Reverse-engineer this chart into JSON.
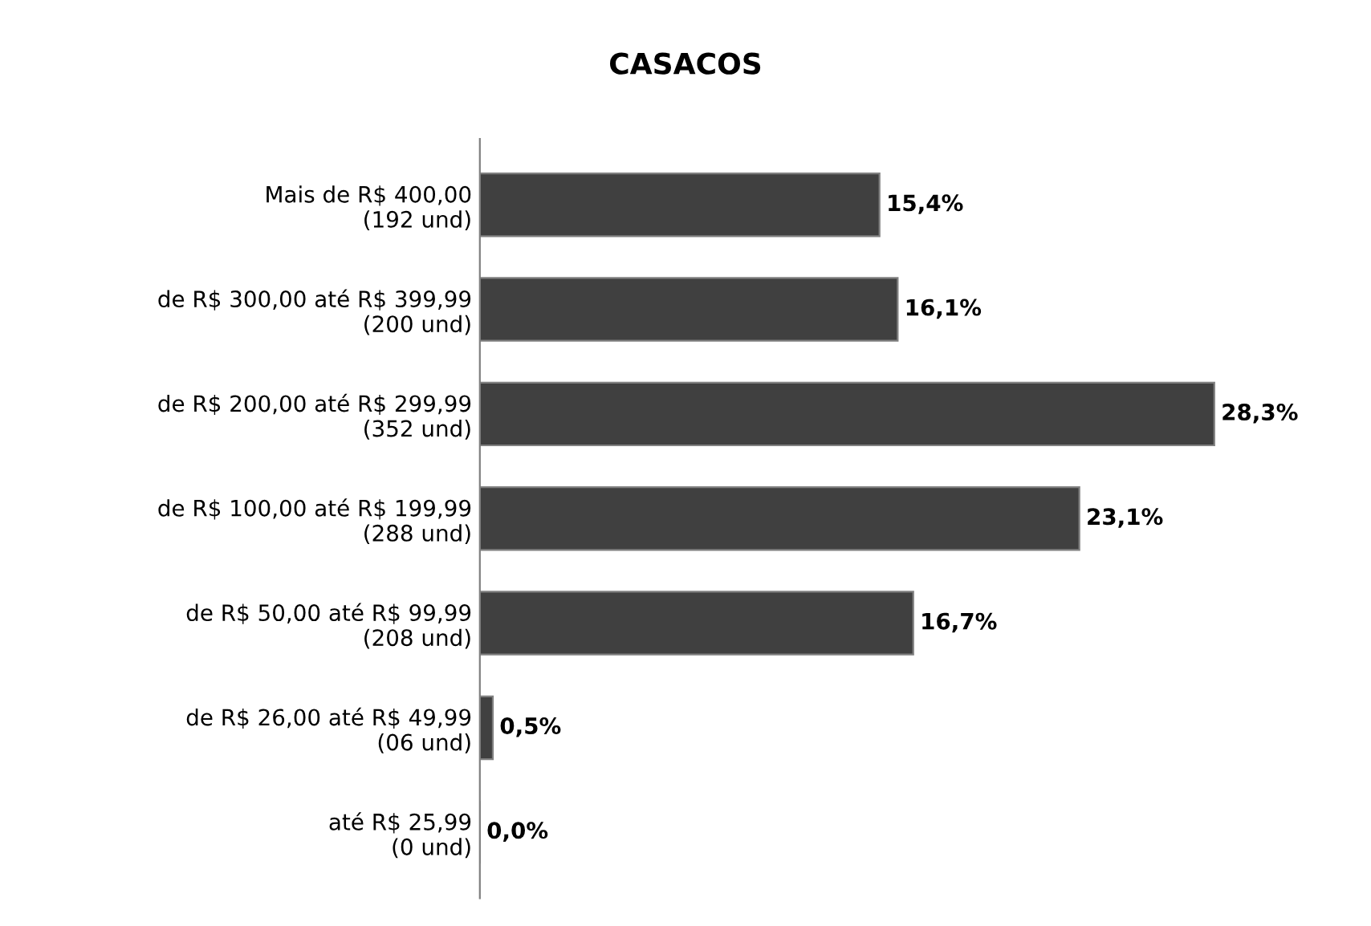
{
  "chart_data": {
    "type": "bar",
    "orientation": "horizontal",
    "title": "CASACOS",
    "categories": [
      "Mais de R$ 400,00\n(192 und)",
      "de R$ 300,00 até R$ 399,99\n(200 und)",
      "de R$ 200,00 até R$ 299,99\n(352 und)",
      "de R$ 100,00 até R$ 199,99\n(288 und)",
      "de R$ 50,00 até R$ 99,99\n(208 und)",
      "de R$ 26,00 até R$ 49,99\n(06 und)",
      "até R$ 25,99\n(0 und)"
    ],
    "values": [
      15.4,
      16.1,
      28.3,
      23.1,
      16.7,
      0.5,
      0.0
    ],
    "value_labels": [
      "15,4%",
      "16,1%",
      "28,3%",
      "23,1%",
      "16,7%",
      "0,5%",
      "0,0%"
    ],
    "color": "#404040",
    "grid": false,
    "legend": false
  }
}
